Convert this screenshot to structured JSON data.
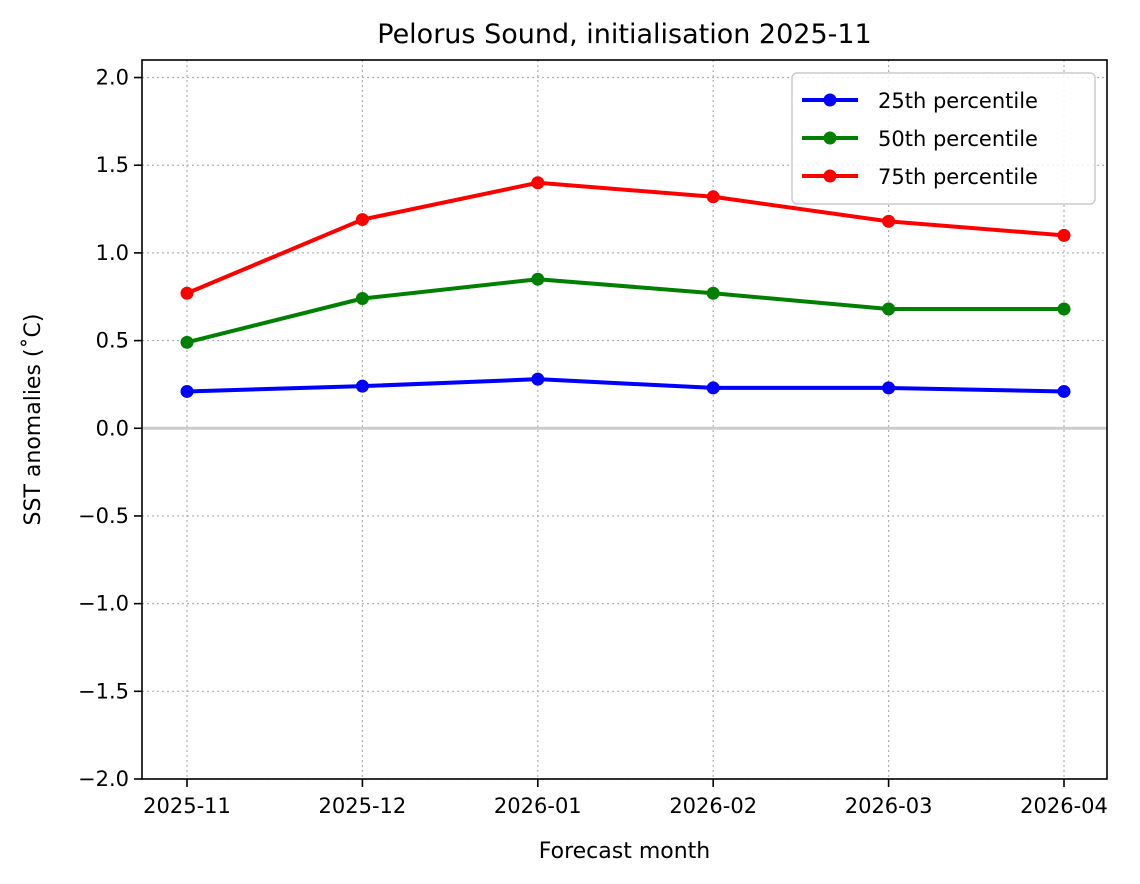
{
  "chart_data": {
    "type": "line",
    "title": "Pelorus Sound, initialisation 2025-11",
    "xlabel": "Forecast month",
    "ylabel": "SST anomalies (˚C)",
    "x": [
      "2025-11",
      "2025-12",
      "2026-01",
      "2026-02",
      "2026-03",
      "2026-04"
    ],
    "ylim": [
      -2.0,
      2.1
    ],
    "yticks": [
      "−2.0",
      "−1.5",
      "−1.0",
      "−0.5",
      "0.0",
      "0.5",
      "1.0",
      "1.5",
      "2.0"
    ],
    "ytick_values": [
      -2.0,
      -1.5,
      -1.0,
      -0.5,
      0.0,
      0.5,
      1.0,
      1.5,
      2.0
    ],
    "grid": true,
    "zero_line": true,
    "zero_line_color": "#cccccc",
    "legend_position": "top-right",
    "series": [
      {
        "name": "25th percentile",
        "color": "#0000ff",
        "values": [
          0.21,
          0.24,
          0.28,
          0.23,
          0.23,
          0.21
        ]
      },
      {
        "name": "50th percentile",
        "color": "#008000",
        "values": [
          0.49,
          0.74,
          0.85,
          0.77,
          0.68,
          0.68
        ]
      },
      {
        "name": "75th percentile",
        "color": "#ff0000",
        "values": [
          0.77,
          1.19,
          1.4,
          1.32,
          1.18,
          1.1
        ]
      }
    ]
  }
}
